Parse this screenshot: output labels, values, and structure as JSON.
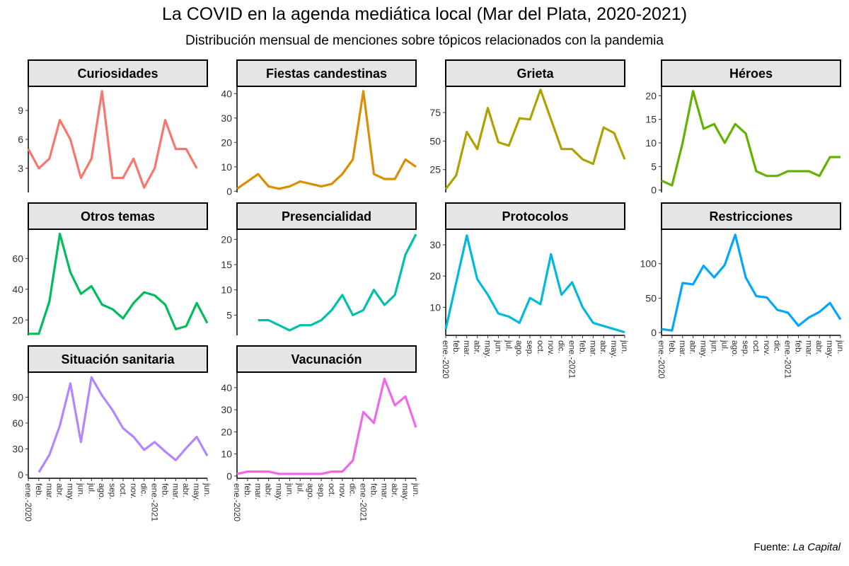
{
  "title": "La COVID en la agenda mediática local (Mar del Plata, 2020-2021)",
  "subtitle": "Distribución mensual de menciones sobre tópicos relacionados con la pandemia",
  "caption": {
    "prefix": "Fuente: ",
    "source": "La Capital"
  },
  "chart_data": {
    "type": "line",
    "facets": "4x3",
    "x": [
      "ene.-2020",
      "feb.",
      "mar.",
      "abr.",
      "may.",
      "jun.",
      "jul.",
      "ago.",
      "sep.",
      "oct.",
      "nov.",
      "dic.",
      "ene.-2021",
      "feb.",
      "mar.",
      "abr.",
      "may.",
      "jun."
    ],
    "series": [
      {
        "name": "Curiosidades",
        "color": "#F8766D",
        "yticks": [
          3,
          6,
          9
        ],
        "ylim": [
          0.5,
          11.5
        ],
        "values": [
          5,
          3,
          4,
          8,
          6,
          2,
          4,
          11,
          2,
          2,
          4,
          1,
          3,
          8,
          5,
          5,
          3,
          null
        ]
      },
      {
        "name": "Fiestas candestinas",
        "color": "#DB8E00",
        "yticks": [
          0,
          10,
          20,
          30,
          40
        ],
        "ylim": [
          -0.5,
          43
        ],
        "values": [
          1,
          4,
          7,
          2,
          1,
          2,
          4,
          3,
          2,
          3,
          7,
          13,
          41,
          7,
          5,
          5,
          13,
          10
        ]
      },
      {
        "name": "Grieta",
        "color": "#AEA200",
        "yticks": [
          25,
          50,
          75
        ],
        "ylim": [
          5,
          98
        ],
        "values": [
          8,
          20,
          58,
          43,
          79,
          49,
          46,
          70,
          69,
          95,
          69,
          43,
          43,
          34,
          30,
          62,
          57,
          34
        ]
      },
      {
        "name": "Héroes",
        "color": "#64B200",
        "yticks": [
          0,
          5,
          10,
          15,
          20
        ],
        "ylim": [
          -0.5,
          22
        ],
        "values": [
          2,
          1,
          10,
          21,
          13,
          14,
          10,
          14,
          12,
          4,
          3,
          3,
          4,
          4,
          4,
          3,
          7,
          7
        ]
      },
      {
        "name": "Otros temas",
        "color": "#00BD5C",
        "yticks": [
          20,
          40,
          60
        ],
        "ylim": [
          10,
          79
        ],
        "values": [
          11,
          11,
          32,
          76,
          51,
          37,
          42,
          30,
          27,
          21,
          31,
          38,
          36,
          30,
          14,
          16,
          31,
          18
        ]
      },
      {
        "name": "Presencialidad",
        "color": "#00C1A7",
        "yticks": [
          5,
          10,
          15,
          20
        ],
        "ylim": [
          1,
          22
        ],
        "values": [
          null,
          null,
          4,
          4,
          3,
          2,
          3,
          3,
          4,
          6,
          9,
          5,
          6,
          10,
          7,
          9,
          17,
          21
        ]
      },
      {
        "name": "Protocolos",
        "color": "#00BADE",
        "yticks": [
          10,
          20,
          30
        ],
        "ylim": [
          1,
          35
        ],
        "values": [
          3,
          18,
          33,
          19,
          14,
          8,
          7,
          5,
          13,
          11,
          27,
          14,
          18,
          10,
          5,
          4,
          3,
          2
        ]
      },
      {
        "name": "Restricciones",
        "color": "#00A6FF",
        "yticks": [
          0,
          50,
          100
        ],
        "ylim": [
          -4,
          150
        ],
        "values": [
          5,
          3,
          72,
          70,
          97,
          80,
          98,
          142,
          80,
          53,
          51,
          33,
          29,
          10,
          22,
          30,
          43,
          19
        ]
      },
      {
        "name": "Situación sanitaria",
        "color": "#B385FF",
        "yticks": [
          0,
          30,
          60,
          90
        ],
        "ylim": [
          -4,
          119
        ],
        "values": [
          null,
          3,
          23,
          57,
          106,
          38,
          113,
          92,
          75,
          54,
          44,
          29,
          38,
          27,
          17,
          31,
          44,
          22
        ]
      },
      {
        "name": "Vacunación",
        "color": "#EF67EB",
        "yticks": [
          0,
          10,
          20,
          30,
          40
        ],
        "ylim": [
          -1,
          47
        ],
        "values": [
          1,
          2,
          2,
          2,
          1,
          1,
          1,
          1,
          1,
          2,
          2,
          7,
          29,
          24,
          44,
          32,
          36,
          22
        ]
      }
    ],
    "xlabel": "",
    "ylabel": "",
    "grid": false,
    "legend": "none"
  }
}
